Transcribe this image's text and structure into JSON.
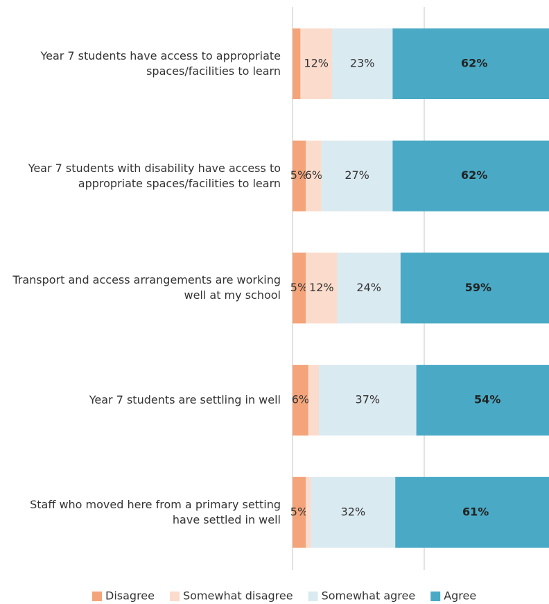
{
  "chart_data": {
    "type": "stacked-bar-horizontal",
    "categories": [
      "Year 7 students have access to appropriate spaces/facilities to learn",
      "Year 7 students with disability have access to appropriate spaces/facilities to learn",
      "Transport and access arrangements are working well at my school",
      "Year 7 students are settling in well",
      "Staff who moved here from a primary setting have settled in well"
    ],
    "series": [
      {
        "name": "Disagree",
        "color": "#f4a47a",
        "values": [
          3,
          5,
          5,
          6,
          5
        ],
        "value_labels": [
          null,
          "5%",
          "5%",
          "6%",
          "5%"
        ]
      },
      {
        "name": "Somewhat disagree",
        "color": "#fbdccc",
        "values": [
          12,
          6,
          12,
          4,
          2
        ],
        "value_labels": [
          "12%",
          "6%",
          "12%",
          null,
          null
        ]
      },
      {
        "name": "Somewhat agree",
        "color": "#daeaf1",
        "values": [
          23,
          27,
          24,
          37,
          32
        ],
        "value_labels": [
          "23%",
          "27%",
          "24%",
          "37%",
          "32%"
        ]
      },
      {
        "name": "Agree",
        "color": "#4aaac6",
        "values": [
          62,
          62,
          59,
          54,
          61
        ],
        "value_labels": [
          "62%",
          "62%",
          "59%",
          "54%",
          "61%"
        ]
      }
    ],
    "xlim": [
      0,
      100
    ],
    "xticks": [
      0,
      50
    ],
    "grid": true
  }
}
